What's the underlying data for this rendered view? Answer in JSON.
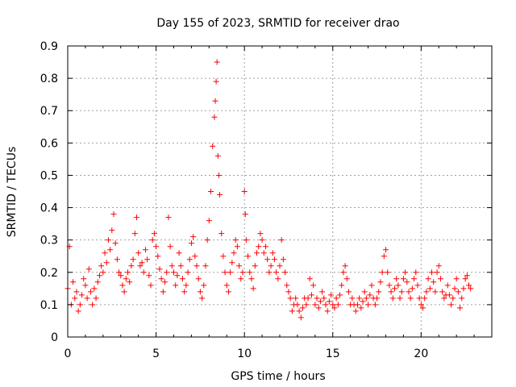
{
  "chart_data": {
    "type": "scatter",
    "title": "Day 155 of 2023, SRMTID for receiver drao",
    "xlabel": "GPS time / hours",
    "ylabel": "SRMTID / TECUs",
    "xlim": [
      0,
      24
    ],
    "ylim": [
      0,
      0.9
    ],
    "xticks": [
      0,
      5,
      10,
      15,
      20
    ],
    "xtick_labels": [
      "0",
      "5",
      "10",
      "15",
      "20"
    ],
    "yticks": [
      0,
      0.1,
      0.2,
      0.3,
      0.4,
      0.5,
      0.6,
      0.7,
      0.8,
      0.9
    ],
    "ytick_labels": [
      "0",
      "0.1",
      "0.2",
      "0.3",
      "0.4",
      "0.5",
      "0.6",
      "0.7",
      "0.8",
      "0.9"
    ],
    "grid": true,
    "marker": "+",
    "series": [
      {
        "name": "SRMTID",
        "color": "#ff0000",
        "x": [
          0.0,
          0.1,
          0.2,
          0.3,
          0.4,
          0.5,
          0.6,
          0.7,
          0.8,
          0.9,
          1.0,
          1.1,
          1.2,
          1.3,
          1.4,
          1.5,
          1.6,
          1.7,
          1.8,
          1.9,
          2.0,
          2.1,
          2.2,
          2.3,
          2.4,
          2.5,
          2.6,
          2.7,
          2.8,
          2.9,
          3.0,
          3.1,
          3.2,
          3.3,
          3.4,
          3.5,
          3.6,
          3.7,
          3.8,
          3.9,
          4.0,
          4.1,
          4.2,
          4.3,
          4.4,
          4.5,
          4.6,
          4.7,
          4.8,
          4.9,
          5.0,
          5.1,
          5.2,
          5.3,
          5.4,
          5.5,
          5.6,
          5.7,
          5.8,
          5.9,
          6.0,
          6.1,
          6.2,
          6.3,
          6.4,
          6.5,
          6.6,
          6.7,
          6.8,
          6.9,
          7.0,
          7.1,
          7.2,
          7.3,
          7.4,
          7.5,
          7.6,
          7.7,
          7.8,
          7.9,
          8.0,
          8.1,
          8.2,
          8.3,
          8.35,
          8.4,
          8.45,
          8.5,
          8.55,
          8.6,
          8.7,
          8.8,
          8.9,
          9.0,
          9.1,
          9.2,
          9.3,
          9.4,
          9.5,
          9.6,
          9.7,
          9.8,
          9.9,
          10.0,
          10.05,
          10.1,
          10.2,
          10.3,
          10.4,
          10.5,
          10.6,
          10.7,
          10.8,
          10.9,
          11.0,
          11.1,
          11.2,
          11.3,
          11.4,
          11.5,
          11.6,
          11.7,
          11.8,
          11.9,
          12.0,
          12.1,
          12.2,
          12.3,
          12.4,
          12.5,
          12.6,
          12.7,
          12.8,
          12.9,
          13.0,
          13.1,
          13.2,
          13.3,
          13.4,
          13.5,
          13.6,
          13.7,
          13.8,
          13.9,
          14.0,
          14.1,
          14.2,
          14.3,
          14.4,
          14.5,
          14.6,
          14.7,
          14.8,
          14.9,
          15.0,
          15.1,
          15.2,
          15.3,
          15.4,
          15.5,
          15.6,
          15.7,
          15.8,
          15.9,
          16.0,
          16.1,
          16.2,
          16.3,
          16.4,
          16.5,
          16.6,
          16.7,
          16.8,
          16.9,
          17.0,
          17.1,
          17.2,
          17.3,
          17.4,
          17.5,
          17.6,
          17.7,
          17.8,
          17.9,
          18.0,
          18.1,
          18.2,
          18.3,
          18.4,
          18.5,
          18.6,
          18.7,
          18.8,
          18.9,
          19.0,
          19.1,
          19.2,
          19.3,
          19.4,
          19.5,
          19.6,
          19.7,
          19.8,
          19.9,
          20.0,
          20.1,
          20.2,
          20.3,
          20.4,
          20.5,
          20.6,
          20.7,
          20.8,
          20.9,
          21.0,
          21.1,
          21.2,
          21.3,
          21.4,
          21.5,
          21.6,
          21.7,
          21.8,
          21.9,
          22.0,
          22.1,
          22.2,
          22.3,
          22.4,
          22.5,
          22.6,
          22.7,
          22.8
        ],
        "y": [
          0.15,
          0.28,
          0.1,
          0.17,
          0.12,
          0.14,
          0.08,
          0.1,
          0.13,
          0.18,
          0.16,
          0.12,
          0.21,
          0.14,
          0.1,
          0.15,
          0.12,
          0.17,
          0.19,
          0.22,
          0.2,
          0.26,
          0.23,
          0.3,
          0.27,
          0.33,
          0.38,
          0.29,
          0.24,
          0.2,
          0.19,
          0.16,
          0.14,
          0.18,
          0.2,
          0.17,
          0.22,
          0.24,
          0.32,
          0.37,
          0.26,
          0.22,
          0.23,
          0.2,
          0.27,
          0.24,
          0.19,
          0.16,
          0.3,
          0.32,
          0.28,
          0.25,
          0.21,
          0.18,
          0.14,
          0.17,
          0.2,
          0.37,
          0.28,
          0.22,
          0.2,
          0.16,
          0.19,
          0.26,
          0.22,
          0.18,
          0.14,
          0.16,
          0.2,
          0.24,
          0.29,
          0.31,
          0.25,
          0.22,
          0.18,
          0.14,
          0.12,
          0.16,
          0.22,
          0.3,
          0.36,
          0.45,
          0.59,
          0.68,
          0.73,
          0.79,
          0.85,
          0.56,
          0.5,
          0.44,
          0.32,
          0.25,
          0.2,
          0.16,
          0.14,
          0.2,
          0.23,
          0.26,
          0.3,
          0.28,
          0.22,
          0.18,
          0.2,
          0.45,
          0.38,
          0.3,
          0.25,
          0.2,
          0.18,
          0.15,
          0.22,
          0.26,
          0.28,
          0.32,
          0.3,
          0.26,
          0.28,
          0.24,
          0.2,
          0.22,
          0.26,
          0.24,
          0.2,
          0.18,
          0.22,
          0.3,
          0.24,
          0.2,
          0.16,
          0.14,
          0.12,
          0.08,
          0.1,
          0.12,
          0.1,
          0.08,
          0.06,
          0.09,
          0.12,
          0.1,
          0.12,
          0.18,
          0.13,
          0.16,
          0.1,
          0.12,
          0.09,
          0.11,
          0.14,
          0.12,
          0.1,
          0.08,
          0.11,
          0.13,
          0.1,
          0.09,
          0.12,
          0.1,
          0.13,
          0.16,
          0.2,
          0.22,
          0.18,
          0.14,
          0.1,
          0.12,
          0.1,
          0.08,
          0.1,
          0.12,
          0.09,
          0.11,
          0.14,
          0.12,
          0.1,
          0.13,
          0.16,
          0.12,
          0.1,
          0.12,
          0.14,
          0.17,
          0.2,
          0.25,
          0.27,
          0.2,
          0.16,
          0.14,
          0.12,
          0.15,
          0.18,
          0.16,
          0.12,
          0.14,
          0.18,
          0.2,
          0.17,
          0.14,
          0.12,
          0.15,
          0.18,
          0.2,
          0.16,
          0.12,
          0.1,
          0.09,
          0.12,
          0.14,
          0.18,
          0.15,
          0.2,
          0.17,
          0.14,
          0.2,
          0.22,
          0.18,
          0.14,
          0.12,
          0.13,
          0.16,
          0.13,
          0.1,
          0.12,
          0.15,
          0.18,
          0.14,
          0.09,
          0.12,
          0.15,
          0.18,
          0.19,
          0.16,
          0.15
        ]
      }
    ]
  }
}
